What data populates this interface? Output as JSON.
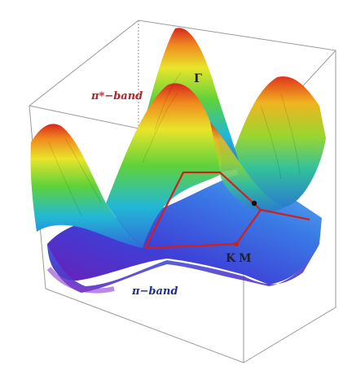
{
  "chart_data": {
    "type": "surface",
    "description_free": true,
    "bands": [
      {
        "id": "upper",
        "label": "π*−band",
        "color_scale": [
          "#2f6bd8",
          "#22b8d6",
          "#5fd23a",
          "#e9e52a",
          "#f08a1e",
          "#d7261d"
        ]
      },
      {
        "id": "lower",
        "label": "π−band",
        "color_scale": [
          "#6a1fb8",
          "#3e3fd6",
          "#3a7be6",
          "#5fb6ee"
        ]
      }
    ],
    "points": [
      {
        "id": "gamma",
        "label": "Γ"
      },
      {
        "id": "k",
        "label": "K"
      },
      {
        "id": "m",
        "label": "M"
      }
    ],
    "path_color": "#d0201a",
    "grid": false,
    "box": true
  }
}
